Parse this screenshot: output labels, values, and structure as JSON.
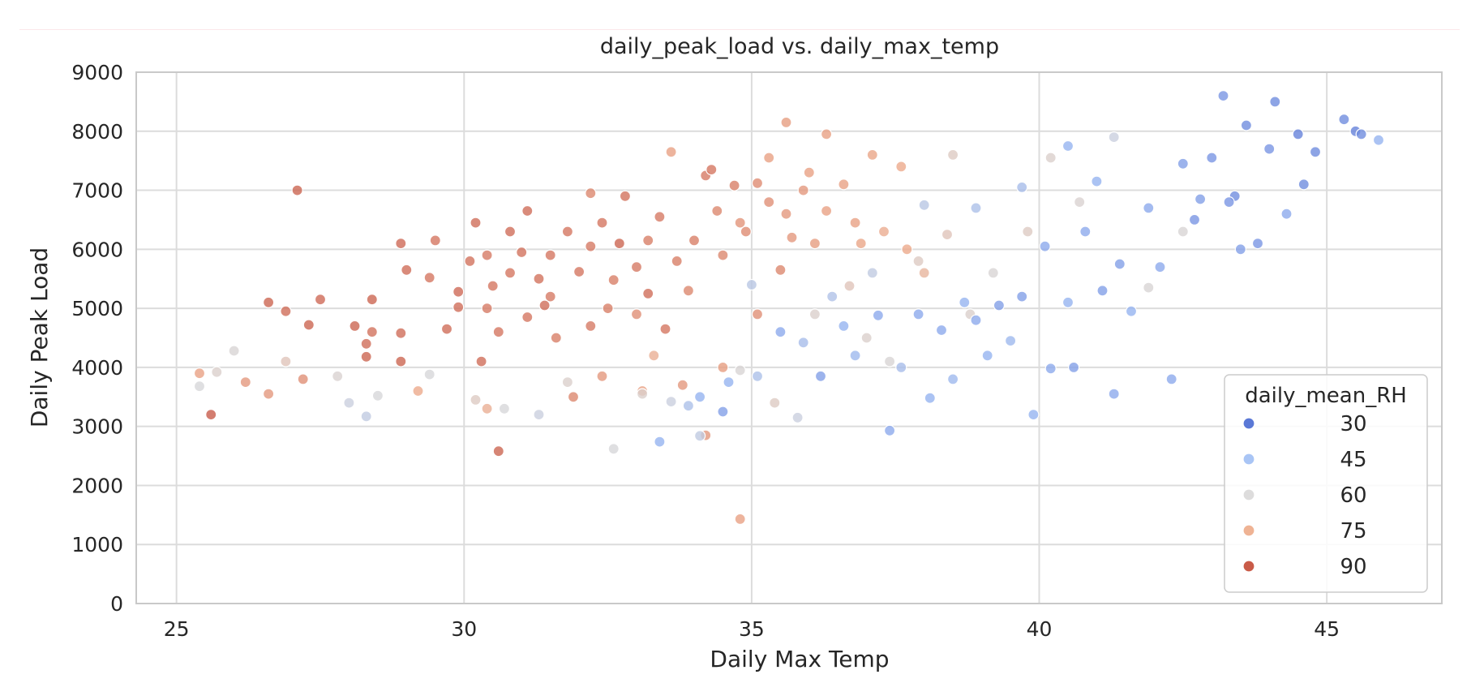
{
  "chart_data": {
    "type": "scatter",
    "title": "daily_peak_load vs. daily_max_temp",
    "xlabel": "Daily Max Temp",
    "ylabel": "Daily Peak Load",
    "xlim": [
      24.3,
      47
    ],
    "ylim": [
      0,
      9000
    ],
    "xticks": [
      25,
      30,
      35,
      40,
      45
    ],
    "yticks": [
      0,
      1000,
      2000,
      3000,
      4000,
      5000,
      6000,
      7000,
      8000,
      9000
    ],
    "grid": true,
    "legend": {
      "title": "daily_mean_RH",
      "placement": "lower-right",
      "entries": [
        {
          "label": "30",
          "color": "#5a78d6"
        },
        {
          "label": "45",
          "color": "#a9c5f5"
        },
        {
          "label": "60",
          "color": "#dddcdc"
        },
        {
          "label": "75",
          "color": "#efb394"
        },
        {
          "label": "90",
          "color": "#c95b48"
        }
      ]
    },
    "color_scale": {
      "colormap": "coolwarm",
      "min": 25,
      "max": 95
    },
    "points": [
      [
        25.6,
        3200,
        90
      ],
      [
        27.1,
        7000,
        88
      ],
      [
        26.6,
        5100,
        88
      ],
      [
        26.9,
        4950,
        86
      ],
      [
        27.3,
        4720,
        88
      ],
      [
        27.5,
        5150,
        87
      ],
      [
        28.1,
        4700,
        88
      ],
      [
        28.3,
        4400,
        86
      ],
      [
        28.3,
        4180,
        88
      ],
      [
        28.4,
        4600,
        85
      ],
      [
        28.4,
        5150,
        88
      ],
      [
        28.9,
        6100,
        87
      ],
      [
        29.0,
        5650,
        86
      ],
      [
        28.9,
        4580,
        86
      ],
      [
        29.4,
        5520,
        84
      ],
      [
        29.5,
        6150,
        84
      ],
      [
        29.7,
        4650,
        86
      ],
      [
        29.9,
        5280,
        87
      ],
      [
        29.9,
        5020,
        86
      ],
      [
        30.1,
        5800,
        85
      ],
      [
        30.2,
        6450,
        86
      ],
      [
        30.4,
        5900,
        83
      ],
      [
        30.4,
        5000,
        83
      ],
      [
        30.5,
        5380,
        84
      ],
      [
        30.6,
        4600,
        84
      ],
      [
        30.8,
        6300,
        86
      ],
      [
        31.0,
        5950,
        85
      ],
      [
        31.1,
        4850,
        84
      ],
      [
        31.1,
        6650,
        86
      ],
      [
        31.3,
        5500,
        85
      ],
      [
        31.5,
        5200,
        83
      ],
      [
        31.6,
        4500,
        82
      ],
      [
        31.8,
        6300,
        84
      ],
      [
        32.0,
        5620,
        84
      ],
      [
        32.2,
        6050,
        83
      ],
      [
        32.4,
        6450,
        84
      ],
      [
        32.5,
        5000,
        82
      ],
      [
        32.6,
        5480,
        82
      ],
      [
        32.8,
        6900,
        85
      ],
      [
        33.0,
        5700,
        83
      ],
      [
        33.2,
        6150,
        82
      ],
      [
        33.4,
        6550,
        83
      ],
      [
        33.5,
        4650,
        84
      ],
      [
        33.7,
        5800,
        82
      ],
      [
        33.9,
        5300,
        80
      ],
      [
        34.0,
        6150,
        82
      ],
      [
        34.2,
        7250,
        83
      ],
      [
        34.4,
        6650,
        80
      ],
      [
        34.5,
        5900,
        80
      ],
      [
        34.7,
        7080,
        82
      ],
      [
        34.9,
        6300,
        79
      ],
      [
        35.1,
        7120,
        79
      ],
      [
        35.3,
        6800,
        78
      ],
      [
        35.5,
        5650,
        80
      ],
      [
        35.7,
        6200,
        76
      ],
      [
        35.9,
        7000,
        76
      ],
      [
        36.1,
        6100,
        75
      ],
      [
        36.3,
        6650,
        74
      ],
      [
        36.6,
        7100,
        74
      ],
      [
        36.9,
        6100,
        73
      ],
      [
        37.1,
        7600,
        73
      ],
      [
        37.3,
        6300,
        71
      ],
      [
        37.6,
        7400,
        72
      ],
      [
        31.9,
        3500,
        80
      ],
      [
        32.4,
        3850,
        76
      ],
      [
        33.1,
        3600,
        74
      ],
      [
        33.8,
        3700,
        76
      ],
      [
        34.2,
        2850,
        76
      ],
      [
        34.5,
        4000,
        75
      ],
      [
        35.1,
        4900,
        78
      ],
      [
        35.6,
        8150,
        75
      ],
      [
        36.3,
        7950,
        74
      ],
      [
        34.8,
        1430,
        74
      ],
      [
        30.6,
        2580,
        88
      ],
      [
        26.2,
        3750,
        76
      ],
      [
        26.6,
        3550,
        76
      ],
      [
        27.2,
        3800,
        78
      ],
      [
        29.2,
        3600,
        72
      ],
      [
        30.4,
        3300,
        70
      ],
      [
        25.4,
        3900,
        74
      ],
      [
        25.4,
        3680,
        55
      ],
      [
        25.7,
        3920,
        58
      ],
      [
        26.0,
        4280,
        56
      ],
      [
        26.9,
        4100,
        62
      ],
      [
        27.8,
        3850,
        57
      ],
      [
        28.0,
        3400,
        52
      ],
      [
        28.3,
        3170,
        50
      ],
      [
        28.5,
        3520,
        55
      ],
      [
        29.4,
        3880,
        55
      ],
      [
        30.2,
        3450,
        60
      ],
      [
        30.7,
        3300,
        55
      ],
      [
        31.3,
        3200,
        52
      ],
      [
        31.8,
        3750,
        58
      ],
      [
        32.6,
        2620,
        55
      ],
      [
        33.1,
        3550,
        58
      ],
      [
        33.6,
        3420,
        52
      ],
      [
        34.1,
        2840,
        50
      ],
      [
        34.8,
        3950,
        56
      ],
      [
        35.4,
        3400,
        60
      ],
      [
        35.8,
        3150,
        52
      ],
      [
        36.1,
        4900,
        58
      ],
      [
        36.7,
        5380,
        62
      ],
      [
        37.0,
        4500,
        58
      ],
      [
        37.4,
        4100,
        56
      ],
      [
        37.9,
        5800,
        60
      ],
      [
        38.4,
        6250,
        62
      ],
      [
        38.8,
        4900,
        58
      ],
      [
        39.2,
        5600,
        56
      ],
      [
        39.8,
        6300,
        60
      ],
      [
        40.2,
        7550,
        58
      ],
      [
        40.7,
        6800,
        57
      ],
      [
        41.3,
        7900,
        52
      ],
      [
        41.9,
        5350,
        56
      ],
      [
        42.5,
        6300,
        56
      ],
      [
        38.5,
        7600,
        60
      ],
      [
        33.4,
        2740,
        40
      ],
      [
        33.9,
        3350,
        45
      ],
      [
        34.1,
        3500,
        40
      ],
      [
        34.5,
        3250,
        36
      ],
      [
        34.6,
        3750,
        40
      ],
      [
        35.1,
        3850,
        45
      ],
      [
        35.5,
        4600,
        38
      ],
      [
        35.9,
        4420,
        44
      ],
      [
        36.2,
        3850,
        36
      ],
      [
        36.6,
        4700,
        40
      ],
      [
        36.8,
        4200,
        42
      ],
      [
        37.2,
        4880,
        38
      ],
      [
        37.4,
        2930,
        38
      ],
      [
        37.6,
        4000,
        44
      ],
      [
        37.9,
        4900,
        38
      ],
      [
        38.1,
        3480,
        40
      ],
      [
        38.3,
        4630,
        38
      ],
      [
        38.5,
        3800,
        42
      ],
      [
        38.7,
        5100,
        40
      ],
      [
        38.9,
        4800,
        38
      ],
      [
        39.1,
        4200,
        40
      ],
      [
        39.3,
        5050,
        36
      ],
      [
        39.5,
        4450,
        42
      ],
      [
        39.7,
        5200,
        36
      ],
      [
        39.9,
        3200,
        40
      ],
      [
        40.1,
        6050,
        38
      ],
      [
        40.2,
        3980,
        38
      ],
      [
        40.5,
        5100,
        40
      ],
      [
        40.6,
        4000,
        36
      ],
      [
        40.8,
        6300,
        38
      ],
      [
        41.1,
        5300,
        36
      ],
      [
        41.3,
        3550,
        38
      ],
      [
        41.4,
        5750,
        36
      ],
      [
        41.6,
        4950,
        40
      ],
      [
        41.9,
        6700,
        38
      ],
      [
        42.1,
        5700,
        38
      ],
      [
        42.3,
        3800,
        38
      ],
      [
        42.5,
        7450,
        36
      ],
      [
        42.8,
        6850,
        36
      ],
      [
        43.0,
        7550,
        34
      ],
      [
        43.2,
        8600,
        34
      ],
      [
        43.4,
        6900,
        32
      ],
      [
        43.5,
        6000,
        36
      ],
      [
        43.6,
        8100,
        32
      ],
      [
        43.8,
        6100,
        34
      ],
      [
        44.0,
        7700,
        34
      ],
      [
        44.1,
        8500,
        32
      ],
      [
        44.3,
        6600,
        38
      ],
      [
        44.5,
        7950,
        30
      ],
      [
        44.6,
        7100,
        32
      ],
      [
        45.3,
        8200,
        32
      ],
      [
        45.5,
        8000,
        30
      ],
      [
        45.6,
        7950,
        32
      ],
      [
        45.9,
        7850,
        40
      ],
      [
        44.8,
        7650,
        32
      ],
      [
        43.3,
        6800,
        34
      ],
      [
        42.7,
        6500,
        34
      ],
      [
        41.0,
        7150,
        40
      ],
      [
        40.5,
        7750,
        40
      ],
      [
        39.7,
        7050,
        44
      ],
      [
        38.9,
        6700,
        45
      ],
      [
        38.0,
        6750,
        48
      ],
      [
        37.1,
        5600,
        50
      ],
      [
        36.4,
        5200,
        46
      ],
      [
        35.0,
        5400,
        48
      ],
      [
        33.0,
        4900,
        78
      ],
      [
        33.3,
        4200,
        70
      ],
      [
        32.2,
        4700,
        83
      ],
      [
        31.5,
        5900,
        84
      ],
      [
        30.8,
        5600,
        84
      ],
      [
        34.8,
        6450,
        77
      ],
      [
        35.6,
        6600,
        76
      ],
      [
        36.0,
        7300,
        74
      ],
      [
        35.3,
        7550,
        74
      ],
      [
        33.6,
        7650,
        74
      ],
      [
        32.2,
        6950,
        80
      ],
      [
        34.3,
        7350,
        84
      ],
      [
        36.8,
        6450,
        74
      ],
      [
        37.7,
        6000,
        72
      ],
      [
        38.0,
        5600,
        68
      ],
      [
        32.7,
        6100,
        88
      ],
      [
        33.2,
        5250,
        86
      ],
      [
        31.4,
        5050,
        86
      ],
      [
        30.3,
        4100,
        86
      ],
      [
        28.9,
        4100,
        88
      ]
    ]
  }
}
